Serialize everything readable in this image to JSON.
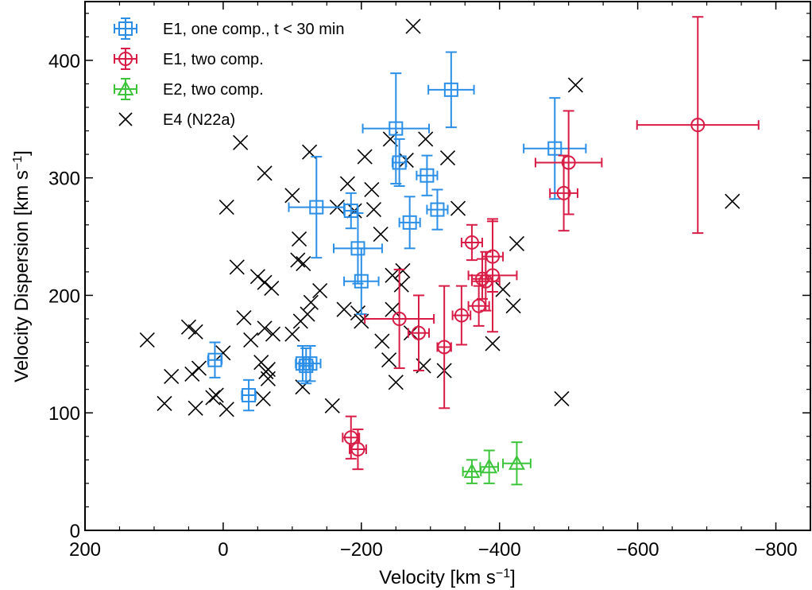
{
  "chart_data": {
    "type": "scatter",
    "xlabel": "Velocity [km s$^{-1}$]",
    "ylabel": "Velocity Dispersion [km s$^{-1}$]",
    "xlim": [
      200,
      -850
    ],
    "ylim": [
      0,
      450
    ],
    "x_ticks": [
      200,
      0,
      -200,
      -400,
      -600,
      -800
    ],
    "y_ticks": [
      0,
      100,
      200,
      300,
      400
    ],
    "x_minor_step": 50,
    "y_minor_step": 20,
    "legend_position": "top-left",
    "series": [
      {
        "name": "E1, one comp., t < 30 min",
        "color": "#2b8fe8",
        "marker": "square",
        "errorbars": true,
        "points": [
          {
            "x": 12,
            "y": 145,
            "xerr": 10,
            "yerr": 15
          },
          {
            "x": -37,
            "y": 115,
            "xerr": 10,
            "yerr": 13
          },
          {
            "x": -115,
            "y": 142,
            "xerr": 10,
            "yerr": 15
          },
          {
            "x": -120,
            "y": 140,
            "xerr": 10,
            "yerr": 15
          },
          {
            "x": -126,
            "y": 142,
            "xerr": 15,
            "yerr": 15
          },
          {
            "x": -135,
            "y": 275,
            "xerr": 40,
            "yerr": 43
          },
          {
            "x": -185,
            "y": 272,
            "xerr": 10,
            "yerr": 15
          },
          {
            "x": -195,
            "y": 240,
            "xerr": 35,
            "yerr": 30
          },
          {
            "x": -200,
            "y": 212,
            "xerr": 25,
            "yerr": 28
          },
          {
            "x": -250,
            "y": 342,
            "xerr": 48,
            "yerr": 47
          },
          {
            "x": -255,
            "y": 313,
            "xerr": 10,
            "yerr": 20
          },
          {
            "x": -270,
            "y": 262,
            "xerr": 15,
            "yerr": 22
          },
          {
            "x": -295,
            "y": 302,
            "xerr": 15,
            "yerr": 17
          },
          {
            "x": -310,
            "y": 273,
            "xerr": 15,
            "yerr": 17
          },
          {
            "x": -330,
            "y": 375,
            "xerr": 33,
            "yerr": 32
          },
          {
            "x": -480,
            "y": 325,
            "xerr": 45,
            "yerr": 43
          }
        ]
      },
      {
        "name": "E1, two comp.",
        "color": "#d81c45",
        "marker": "circle",
        "errorbars": true,
        "points": [
          {
            "x": -185,
            "y": 79,
            "xerr": 12,
            "yerr": 18
          },
          {
            "x": -195,
            "y": 69,
            "xerr": 12,
            "yerr": 17
          },
          {
            "x": -255,
            "y": 180,
            "xerr": 50,
            "yerr": 42
          },
          {
            "x": -283,
            "y": 168,
            "xerr": 15,
            "yerr": 32
          },
          {
            "x": -320,
            "y": 156,
            "xerr": 10,
            "yerr": 52
          },
          {
            "x": -345,
            "y": 183,
            "xerr": 13,
            "yerr": 25
          },
          {
            "x": -360,
            "y": 245,
            "xerr": 15,
            "yerr": 15
          },
          {
            "x": -370,
            "y": 191,
            "xerr": 15,
            "yerr": 17
          },
          {
            "x": -375,
            "y": 214,
            "xerr": 15,
            "yerr": 17
          },
          {
            "x": -380,
            "y": 212,
            "xerr": 20,
            "yerr": 25
          },
          {
            "x": -390,
            "y": 233,
            "xerr": 15,
            "yerr": 30
          },
          {
            "x": -390,
            "y": 217,
            "xerr": 35,
            "yerr": 48
          },
          {
            "x": -493,
            "y": 287,
            "xerr": 20,
            "yerr": 32
          },
          {
            "x": -500,
            "y": 313,
            "xerr": 48,
            "yerr": 44
          },
          {
            "x": -687,
            "y": 345,
            "xerr": 88,
            "yerr": 92
          }
        ]
      },
      {
        "name": "E2, two comp.",
        "color": "#3cc43a",
        "marker": "triangle",
        "errorbars": true,
        "points": [
          {
            "x": -360,
            "y": 50,
            "xerr": 13,
            "yerr": 10
          },
          {
            "x": -385,
            "y": 54,
            "xerr": 13,
            "yerr": 14
          },
          {
            "x": -425,
            "y": 57,
            "xerr": 20,
            "yerr": 18
          }
        ]
      },
      {
        "name": "E4 (N22a)",
        "color": "#000000",
        "marker": "x",
        "errorbars": false,
        "points": [
          {
            "x": 110,
            "y": 162
          },
          {
            "x": 85,
            "y": 108
          },
          {
            "x": 75,
            "y": 131
          },
          {
            "x": 50,
            "y": 173
          },
          {
            "x": 40,
            "y": 169
          },
          {
            "x": 45,
            "y": 133
          },
          {
            "x": 40,
            "y": 104
          },
          {
            "x": 35,
            "y": 138
          },
          {
            "x": 15,
            "y": 113
          },
          {
            "x": 10,
            "y": 115
          },
          {
            "x": 0,
            "y": 151
          },
          {
            "x": -5,
            "y": 103
          },
          {
            "x": -5,
            "y": 275
          },
          {
            "x": -20,
            "y": 224
          },
          {
            "x": -25,
            "y": 330
          },
          {
            "x": -30,
            "y": 181
          },
          {
            "x": -40,
            "y": 162
          },
          {
            "x": -50,
            "y": 216
          },
          {
            "x": -55,
            "y": 143
          },
          {
            "x": -58,
            "y": 112
          },
          {
            "x": -60,
            "y": 304
          },
          {
            "x": -60,
            "y": 211
          },
          {
            "x": -60,
            "y": 172
          },
          {
            "x": -62,
            "y": 135
          },
          {
            "x": -65,
            "y": 137
          },
          {
            "x": -65,
            "y": 129
          },
          {
            "x": -70,
            "y": 206
          },
          {
            "x": -72,
            "y": 167
          },
          {
            "x": -100,
            "y": 167
          },
          {
            "x": -100,
            "y": 285
          },
          {
            "x": -108,
            "y": 230
          },
          {
            "x": -110,
            "y": 248
          },
          {
            "x": -112,
            "y": 178
          },
          {
            "x": -115,
            "y": 122
          },
          {
            "x": -116,
            "y": 227
          },
          {
            "x": -122,
            "y": 184
          },
          {
            "x": -125,
            "y": 322
          },
          {
            "x": -127,
            "y": 194
          },
          {
            "x": -140,
            "y": 204
          },
          {
            "x": -158,
            "y": 106
          },
          {
            "x": -165,
            "y": 275
          },
          {
            "x": -175,
            "y": 188
          },
          {
            "x": -180,
            "y": 295
          },
          {
            "x": -190,
            "y": 272
          },
          {
            "x": -195,
            "y": 185
          },
          {
            "x": -200,
            "y": 178
          },
          {
            "x": -205,
            "y": 318
          },
          {
            "x": -215,
            "y": 290
          },
          {
            "x": -218,
            "y": 273
          },
          {
            "x": -228,
            "y": 252
          },
          {
            "x": -230,
            "y": 161
          },
          {
            "x": -240,
            "y": 145
          },
          {
            "x": -242,
            "y": 333
          },
          {
            "x": -245,
            "y": 217
          },
          {
            "x": -245,
            "y": 188
          },
          {
            "x": -250,
            "y": 126
          },
          {
            "x": -258,
            "y": 209
          },
          {
            "x": -260,
            "y": 221
          },
          {
            "x": -265,
            "y": 315
          },
          {
            "x": -272,
            "y": 168
          },
          {
            "x": -275,
            "y": 429
          },
          {
            "x": -290,
            "y": 140
          },
          {
            "x": -293,
            "y": 333
          },
          {
            "x": -320,
            "y": 136
          },
          {
            "x": -325,
            "y": 317
          },
          {
            "x": -340,
            "y": 274
          },
          {
            "x": -390,
            "y": 159
          },
          {
            "x": -405,
            "y": 205
          },
          {
            "x": -420,
            "y": 191
          },
          {
            "x": -425,
            "y": 244
          },
          {
            "x": -490,
            "y": 112
          },
          {
            "x": -510,
            "y": 379
          },
          {
            "x": -737,
            "y": 280
          }
        ]
      }
    ]
  }
}
